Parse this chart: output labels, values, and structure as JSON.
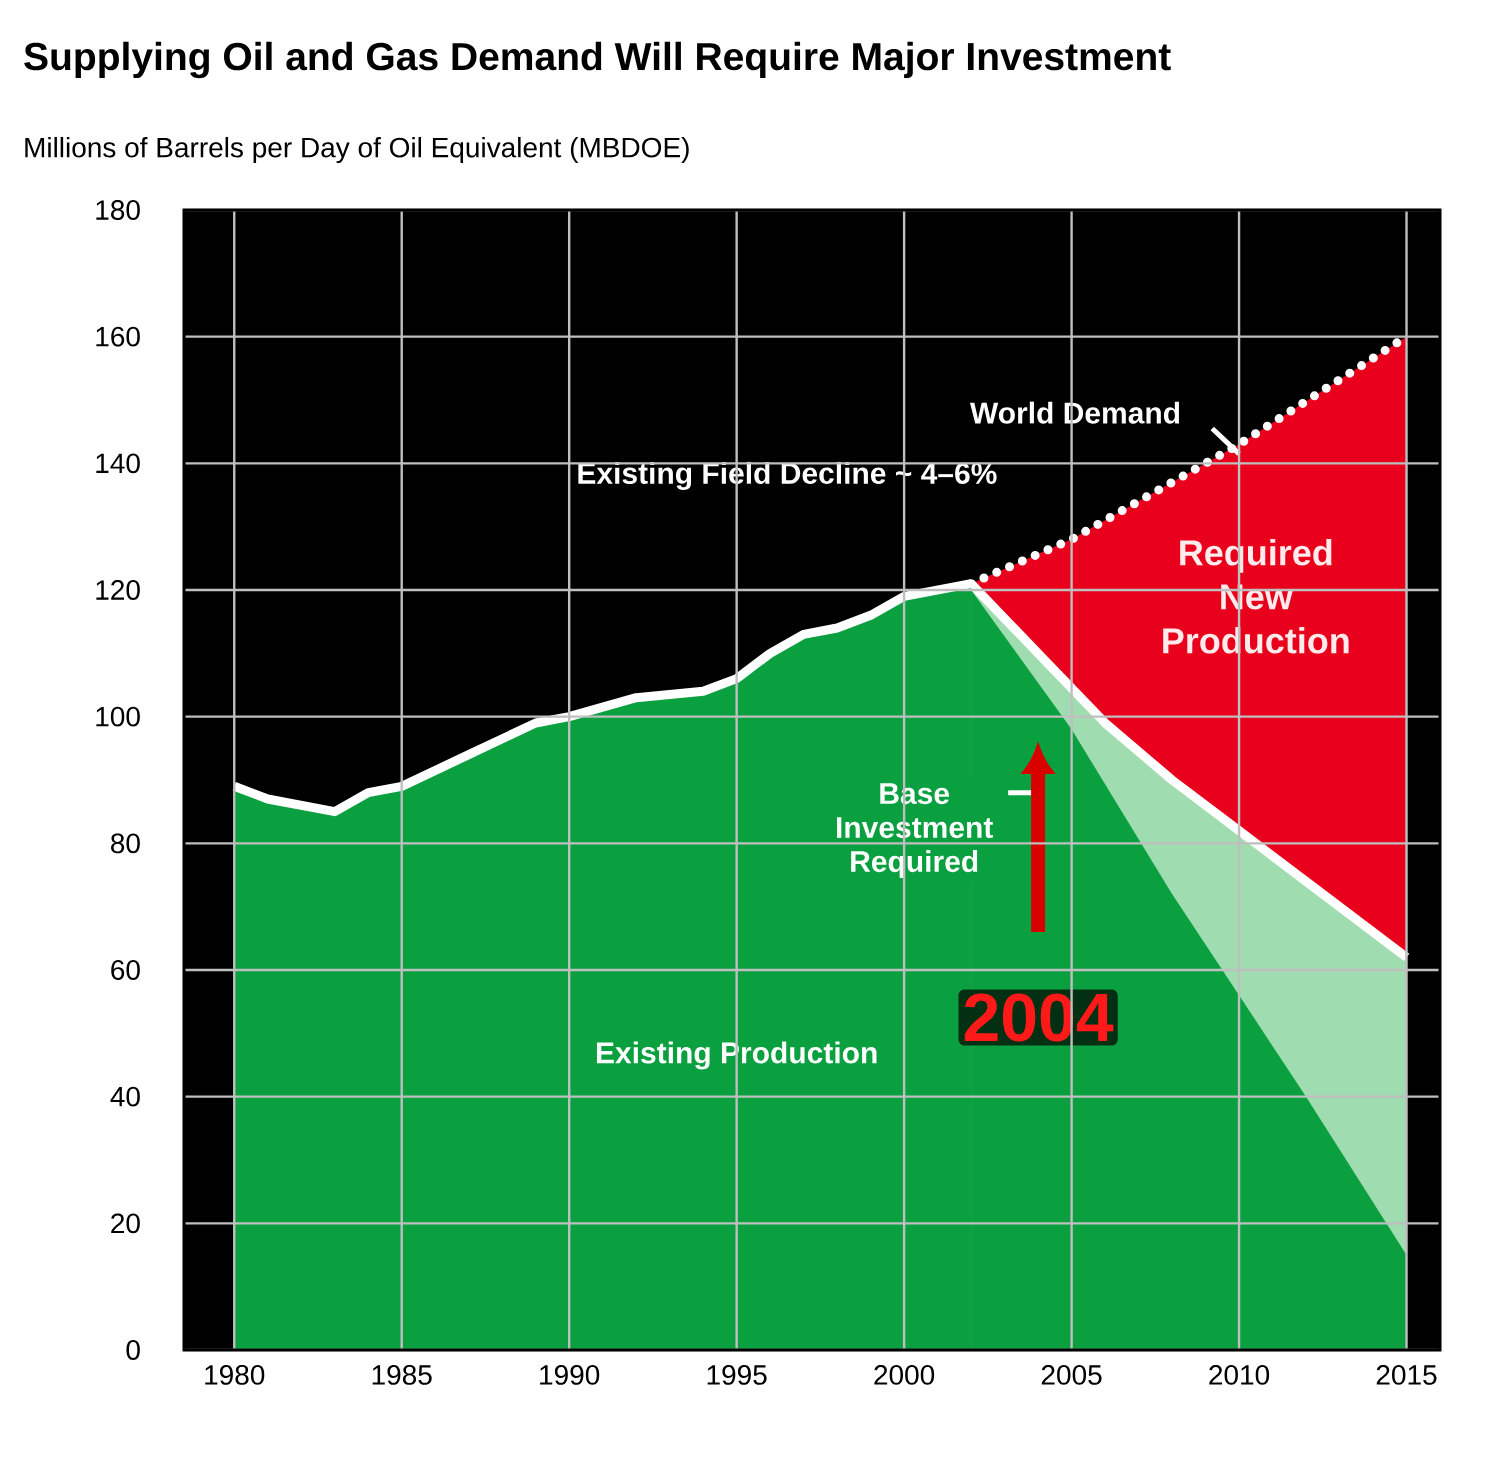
{
  "chart_data": {
    "type": "area",
    "title": "Supplying Oil and Gas Demand Will Require Major Investment",
    "subtitle": "Millions of Barrels per Day of Oil Equivalent (MBDOE)",
    "xlim": [
      1978.5,
      2016
    ],
    "ylim": [
      0,
      180
    ],
    "xticks": [
      1980,
      1985,
      1990,
      1995,
      2000,
      2005,
      2010,
      2015
    ],
    "yticks": [
      0,
      20,
      40,
      60,
      80,
      100,
      120,
      140,
      160,
      180
    ],
    "grid": true,
    "series": [
      {
        "color": "#e8001c",
        "line_style": "dotted",
        "x": [
          2002,
          2005,
          2010,
          2015
        ],
        "values": [
          121,
          128,
          143,
          160
        ]
      },
      {
        "color": "#9fdcb0",
        "line_style": "solid",
        "x": [
          2002,
          2004,
          2006,
          2008,
          2010,
          2012,
          2015
        ],
        "values": [
          121,
          110,
          99,
          90,
          82,
          74,
          62
        ]
      },
      {
        "color": "#0aa040",
        "x": [
          2002,
          2005,
          2008,
          2010,
          2012,
          2015
        ],
        "values": [
          120,
          98,
          72,
          56,
          40,
          15
        ]
      },
      {
        "color": "#0aa040",
        "line_style": "solid",
        "x": [
          1980,
          1981,
          1983,
          1984,
          1985,
          1987,
          1989,
          1990,
          1992,
          1994,
          1995,
          1996,
          1997,
          1998,
          1999,
          2000,
          2001,
          2002
        ],
        "values": [
          89,
          87,
          85,
          88,
          89,
          94,
          99,
          100,
          103,
          104,
          106,
          110,
          113,
          114,
          116,
          119,
          120,
          121
        ]
      }
    ],
    "annotations": [
      "World Demand",
      "Existing Field Decline ~ 4–6%",
      "Required New Production",
      "Base Investment Required",
      "Existing Production",
      "2004"
    ]
  }
}
